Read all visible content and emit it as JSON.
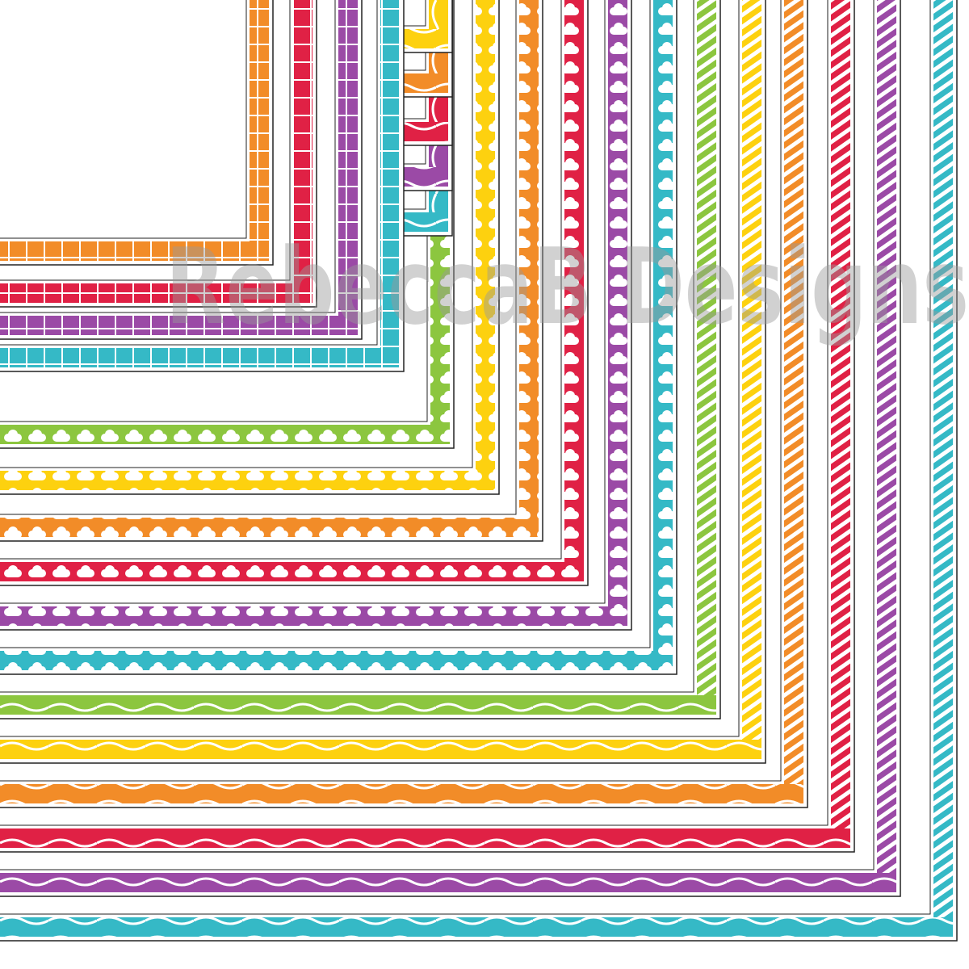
{
  "watermark": "RebeccaB Designs"
}
